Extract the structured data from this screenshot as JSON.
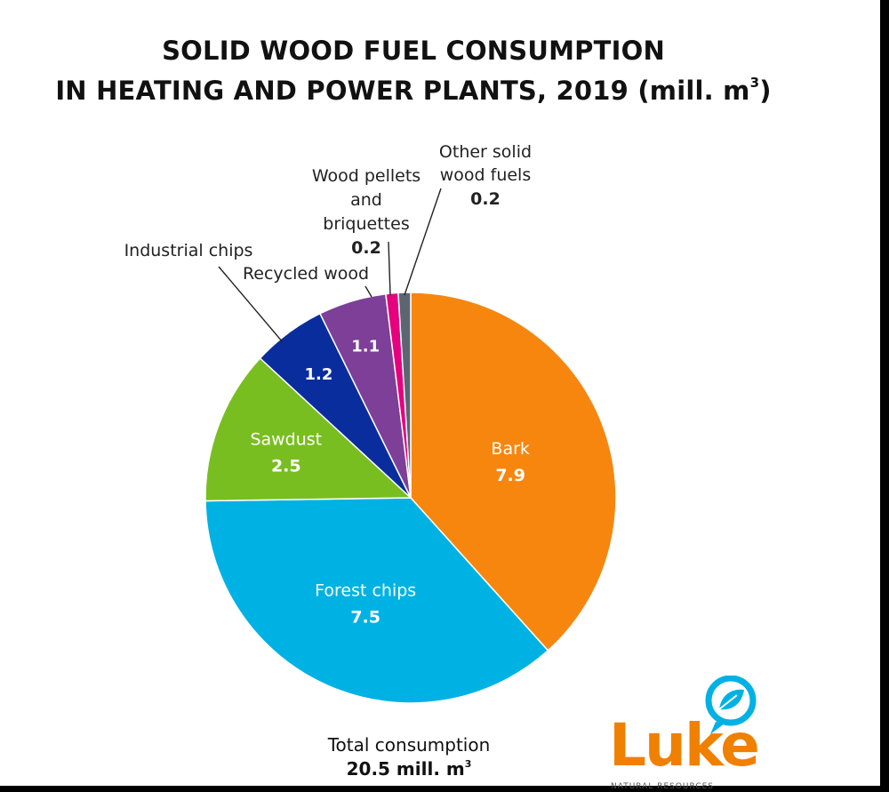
{
  "title": {
    "line1": "SOLID WOOD FUEL CONSUMPTION",
    "line2": "IN HEATING AND POWER PLANTS, 2019 (mill. m",
    "line2_sup": "3",
    "line2_end": ")"
  },
  "total": {
    "label": "Total consumption",
    "value": "20.5 mill. m",
    "value_sup": "3"
  },
  "logo": {
    "text": "Luke",
    "subtext": "NATURAL RESOURCES",
    "color": "#f08000"
  },
  "chart_data": {
    "type": "pie",
    "unit": "mill. m³",
    "total": 20.5,
    "slices": [
      {
        "name": "Bark",
        "value": 7.9,
        "label": "7.9",
        "color": "#f7860f"
      },
      {
        "name": "Forest chips",
        "value": 7.5,
        "label": "7.5",
        "color": "#00b2e3"
      },
      {
        "name": "Sawdust",
        "value": 2.5,
        "label": "2.5",
        "color": "#78be20"
      },
      {
        "name": "Industrial chips",
        "value": 1.2,
        "label": "1.2",
        "color": "#0a2d9e"
      },
      {
        "name": "Recycled wood",
        "value": 1.1,
        "label": "1.1",
        "color": "#7d3f98"
      },
      {
        "name": "Wood pellets and briquettes",
        "value": 0.2,
        "label": "0.2",
        "color": "#e6007e"
      },
      {
        "name": "Other solid wood fuels",
        "value": 0.2,
        "label": "0.2",
        "color": "#5c6670"
      }
    ]
  }
}
